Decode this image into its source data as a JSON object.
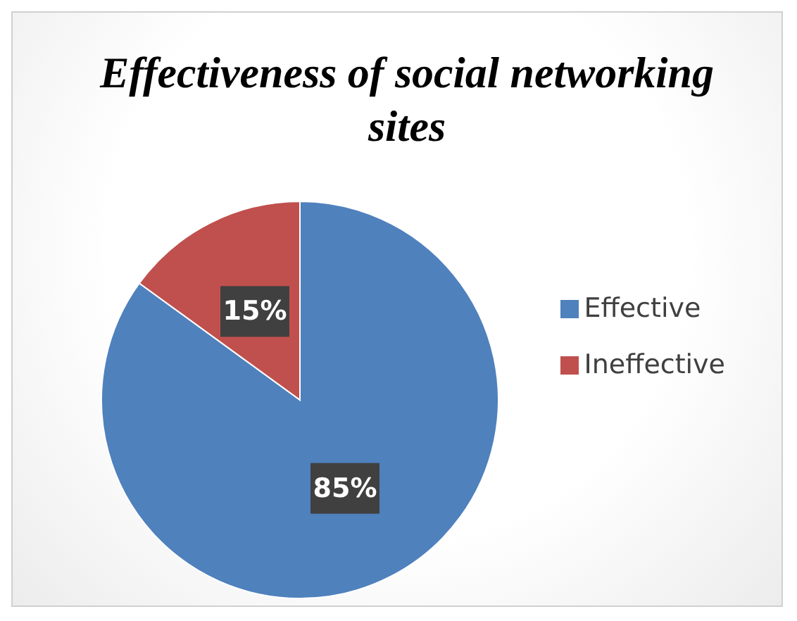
{
  "chart_data": {
    "type": "pie",
    "title": "Effectiveness of social networking sites",
    "categories": [
      "Effective",
      "Ineffective"
    ],
    "values": [
      85,
      15
    ],
    "colors": [
      "#4f81bd",
      "#c0504d"
    ],
    "value_labels": [
      "85%",
      "15%"
    ],
    "legend": "right"
  }
}
